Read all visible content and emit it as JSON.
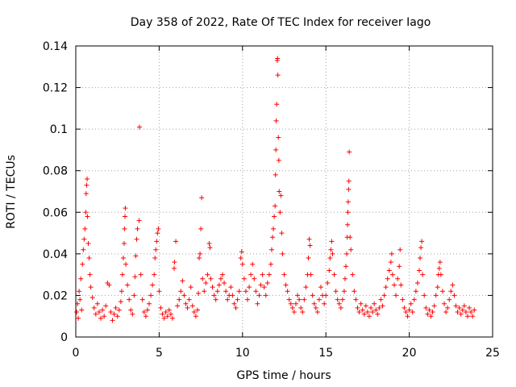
{
  "chart_data": {
    "type": "scatter",
    "title": "Day 358 of 2022, Rate Of TEC Index for receiver Iago",
    "xlabel": "GPS time / hours",
    "ylabel": "ROTI / TECUs",
    "xlim": [
      0,
      25
    ],
    "ylim": [
      0,
      0.14
    ],
    "xticks": [
      0,
      5,
      10,
      15,
      20,
      25
    ],
    "xtick_labels": [
      "0",
      "5",
      "10",
      "15",
      "20",
      "25"
    ],
    "yticks": [
      0,
      0.02,
      0.04,
      0.06,
      0.08,
      0.1,
      0.12,
      0.14
    ],
    "ytick_labels": [
      "0",
      "0.02",
      "0.04",
      "0.06",
      "0.08",
      "0.1",
      "0.12",
      "0.14"
    ],
    "grid": true,
    "marker": "+",
    "color": "#ff0000",
    "series": [
      {
        "points": [
          [
            0.05,
            0.012
          ],
          [
            0.1,
            0.016
          ],
          [
            0.15,
            0.009
          ],
          [
            0.2,
            0.022
          ],
          [
            0.25,
            0.018
          ],
          [
            0.3,
            0.028
          ],
          [
            0.35,
            0.013
          ],
          [
            0.4,
            0.035
          ],
          [
            0.45,
            0.042
          ],
          [
            0.5,
            0.047
          ],
          [
            0.55,
            0.052
          ],
          [
            0.6,
            0.06
          ],
          [
            0.62,
            0.069
          ],
          [
            0.65,
            0.073
          ],
          [
            0.68,
            0.076
          ],
          [
            0.7,
            0.058
          ],
          [
            0.75,
            0.045
          ],
          [
            0.8,
            0.038
          ],
          [
            0.85,
            0.03
          ],
          [
            0.9,
            0.024
          ],
          [
            1.0,
            0.019
          ],
          [
            1.1,
            0.014
          ],
          [
            1.2,
            0.011
          ],
          [
            1.3,
            0.016
          ],
          [
            1.4,
            0.012
          ],
          [
            1.5,
            0.009
          ],
          [
            1.6,
            0.013
          ],
          [
            1.7,
            0.01
          ],
          [
            1.8,
            0.015
          ],
          [
            1.9,
            0.026
          ],
          [
            2.0,
            0.025
          ],
          [
            2.1,
            0.012
          ],
          [
            2.2,
            0.008
          ],
          [
            2.3,
            0.011
          ],
          [
            2.4,
            0.014
          ],
          [
            2.5,
            0.01
          ],
          [
            2.6,
            0.013
          ],
          [
            2.7,
            0.017
          ],
          [
            2.75,
            0.022
          ],
          [
            2.8,
            0.03
          ],
          [
            2.85,
            0.038
          ],
          [
            2.9,
            0.045
          ],
          [
            2.92,
            0.052
          ],
          [
            2.95,
            0.058
          ],
          [
            2.97,
            0.062
          ],
          [
            3.0,
            0.035
          ],
          [
            3.1,
            0.025
          ],
          [
            3.2,
            0.018
          ],
          [
            3.3,
            0.013
          ],
          [
            3.4,
            0.011
          ],
          [
            3.5,
            0.02
          ],
          [
            3.55,
            0.029
          ],
          [
            3.6,
            0.039
          ],
          [
            3.65,
            0.047
          ],
          [
            3.7,
            0.052
          ],
          [
            3.8,
            0.056
          ],
          [
            3.82,
            0.101
          ],
          [
            3.9,
            0.03
          ],
          [
            4.0,
            0.018
          ],
          [
            4.1,
            0.012
          ],
          [
            4.2,
            0.01
          ],
          [
            4.3,
            0.013
          ],
          [
            4.4,
            0.016
          ],
          [
            4.5,
            0.02
          ],
          [
            4.6,
            0.025
          ],
          [
            4.7,
            0.03
          ],
          [
            4.75,
            0.038
          ],
          [
            4.8,
            0.042
          ],
          [
            4.85,
            0.046
          ],
          [
            4.9,
            0.05
          ],
          [
            4.95,
            0.052
          ],
          [
            5.0,
            0.022
          ],
          [
            5.1,
            0.014
          ],
          [
            5.2,
            0.011
          ],
          [
            5.3,
            0.009
          ],
          [
            5.4,
            0.012
          ],
          [
            5.5,
            0.01
          ],
          [
            5.6,
            0.013
          ],
          [
            5.7,
            0.011
          ],
          [
            5.8,
            0.009
          ],
          [
            5.9,
            0.033
          ],
          [
            5.92,
            0.036
          ],
          [
            6.0,
            0.046
          ],
          [
            6.1,
            0.015
          ],
          [
            6.2,
            0.018
          ],
          [
            6.3,
            0.022
          ],
          [
            6.4,
            0.027
          ],
          [
            6.5,
            0.02
          ],
          [
            6.6,
            0.016
          ],
          [
            6.7,
            0.014
          ],
          [
            6.8,
            0.018
          ],
          [
            6.9,
            0.024
          ],
          [
            7.0,
            0.015
          ],
          [
            7.1,
            0.012
          ],
          [
            7.2,
            0.01
          ],
          [
            7.3,
            0.013
          ],
          [
            7.35,
            0.021
          ],
          [
            7.4,
            0.038
          ],
          [
            7.45,
            0.04
          ],
          [
            7.5,
            0.052
          ],
          [
            7.55,
            0.067
          ],
          [
            7.6,
            0.028
          ],
          [
            7.7,
            0.022
          ],
          [
            7.8,
            0.026
          ],
          [
            7.9,
            0.03
          ],
          [
            8.0,
            0.045
          ],
          [
            8.05,
            0.043
          ],
          [
            8.1,
            0.028
          ],
          [
            8.2,
            0.024
          ],
          [
            8.3,
            0.02
          ],
          [
            8.4,
            0.018
          ],
          [
            8.5,
            0.022
          ],
          [
            8.6,
            0.025
          ],
          [
            8.7,
            0.028
          ],
          [
            8.8,
            0.03
          ],
          [
            8.9,
            0.026
          ],
          [
            9.0,
            0.022
          ],
          [
            9.1,
            0.018
          ],
          [
            9.2,
            0.02
          ],
          [
            9.3,
            0.024
          ],
          [
            9.4,
            0.02
          ],
          [
            9.5,
            0.016
          ],
          [
            9.6,
            0.014
          ],
          [
            9.7,
            0.018
          ],
          [
            9.8,
            0.022
          ],
          [
            9.9,
            0.038
          ],
          [
            9.95,
            0.041
          ],
          [
            10.0,
            0.035
          ],
          [
            10.1,
            0.028
          ],
          [
            10.2,
            0.022
          ],
          [
            10.3,
            0.018
          ],
          [
            10.4,
            0.024
          ],
          [
            10.5,
            0.03
          ],
          [
            10.6,
            0.035
          ],
          [
            10.7,
            0.028
          ],
          [
            10.8,
            0.022
          ],
          [
            10.9,
            0.016
          ],
          [
            11.0,
            0.02
          ],
          [
            11.1,
            0.025
          ],
          [
            11.2,
            0.03
          ],
          [
            11.3,
            0.024
          ],
          [
            11.4,
            0.02
          ],
          [
            11.5,
            0.026
          ],
          [
            11.6,
            0.03
          ],
          [
            11.7,
            0.035
          ],
          [
            11.75,
            0.042
          ],
          [
            11.8,
            0.048
          ],
          [
            11.85,
            0.052
          ],
          [
            11.9,
            0.058
          ],
          [
            11.95,
            0.063
          ],
          [
            11.98,
            0.078
          ],
          [
            12.0,
            0.09
          ],
          [
            12.02,
            0.104
          ],
          [
            12.05,
            0.112
          ],
          [
            12.08,
            0.133
          ],
          [
            12.1,
            0.134
          ],
          [
            12.12,
            0.126
          ],
          [
            12.15,
            0.096
          ],
          [
            12.18,
            0.085
          ],
          [
            12.2,
            0.07
          ],
          [
            12.25,
            0.06
          ],
          [
            12.3,
            0.068
          ],
          [
            12.35,
            0.05
          ],
          [
            12.4,
            0.04
          ],
          [
            12.5,
            0.03
          ],
          [
            12.6,
            0.025
          ],
          [
            12.7,
            0.022
          ],
          [
            12.8,
            0.018
          ],
          [
            12.9,
            0.016
          ],
          [
            13.0,
            0.014
          ],
          [
            13.1,
            0.012
          ],
          [
            13.2,
            0.016
          ],
          [
            13.3,
            0.02
          ],
          [
            13.4,
            0.018
          ],
          [
            13.5,
            0.014
          ],
          [
            13.6,
            0.012
          ],
          [
            13.7,
            0.018
          ],
          [
            13.8,
            0.024
          ],
          [
            13.9,
            0.03
          ],
          [
            13.95,
            0.038
          ],
          [
            14.0,
            0.047
          ],
          [
            14.05,
            0.044
          ],
          [
            14.1,
            0.03
          ],
          [
            14.2,
            0.02
          ],
          [
            14.3,
            0.016
          ],
          [
            14.4,
            0.014
          ],
          [
            14.5,
            0.012
          ],
          [
            14.6,
            0.018
          ],
          [
            14.7,
            0.024
          ],
          [
            14.8,
            0.02
          ],
          [
            14.9,
            0.016
          ],
          [
            15.0,
            0.02
          ],
          [
            15.1,
            0.026
          ],
          [
            15.2,
            0.032
          ],
          [
            15.25,
            0.038
          ],
          [
            15.3,
            0.042
          ],
          [
            15.35,
            0.046
          ],
          [
            15.4,
            0.04
          ],
          [
            15.5,
            0.03
          ],
          [
            15.6,
            0.022
          ],
          [
            15.7,
            0.018
          ],
          [
            15.8,
            0.016
          ],
          [
            15.9,
            0.014
          ],
          [
            16.0,
            0.018
          ],
          [
            16.1,
            0.022
          ],
          [
            16.15,
            0.028
          ],
          [
            16.2,
            0.034
          ],
          [
            16.25,
            0.04
          ],
          [
            16.28,
            0.048
          ],
          [
            16.3,
            0.054
          ],
          [
            16.32,
            0.06
          ],
          [
            16.34,
            0.065
          ],
          [
            16.36,
            0.071
          ],
          [
            16.38,
            0.075
          ],
          [
            16.4,
            0.089
          ],
          [
            16.45,
            0.048
          ],
          [
            16.5,
            0.042
          ],
          [
            16.6,
            0.03
          ],
          [
            16.7,
            0.022
          ],
          [
            16.8,
            0.018
          ],
          [
            16.9,
            0.014
          ],
          [
            17.0,
            0.012
          ],
          [
            17.1,
            0.016
          ],
          [
            17.2,
            0.013
          ],
          [
            17.3,
            0.011
          ],
          [
            17.4,
            0.015
          ],
          [
            17.5,
            0.012
          ],
          [
            17.6,
            0.01
          ],
          [
            17.7,
            0.014
          ],
          [
            17.8,
            0.012
          ],
          [
            17.9,
            0.016
          ],
          [
            18.0,
            0.013
          ],
          [
            18.1,
            0.011
          ],
          [
            18.2,
            0.014
          ],
          [
            18.3,
            0.018
          ],
          [
            18.4,
            0.015
          ],
          [
            18.5,
            0.02
          ],
          [
            18.6,
            0.024
          ],
          [
            18.7,
            0.028
          ],
          [
            18.8,
            0.032
          ],
          [
            18.9,
            0.036
          ],
          [
            18.95,
            0.04
          ],
          [
            19.0,
            0.03
          ],
          [
            19.1,
            0.025
          ],
          [
            19.2,
            0.02
          ],
          [
            19.3,
            0.028
          ],
          [
            19.4,
            0.034
          ],
          [
            19.45,
            0.042
          ],
          [
            19.5,
            0.025
          ],
          [
            19.6,
            0.018
          ],
          [
            19.7,
            0.014
          ],
          [
            19.8,
            0.012
          ],
          [
            19.9,
            0.01
          ],
          [
            20.0,
            0.013
          ],
          [
            20.1,
            0.016
          ],
          [
            20.2,
            0.012
          ],
          [
            20.3,
            0.018
          ],
          [
            20.4,
            0.022
          ],
          [
            20.5,
            0.026
          ],
          [
            20.6,
            0.032
          ],
          [
            20.65,
            0.038
          ],
          [
            20.7,
            0.043
          ],
          [
            20.75,
            0.046
          ],
          [
            20.8,
            0.03
          ],
          [
            20.9,
            0.02
          ],
          [
            21.0,
            0.014
          ],
          [
            21.1,
            0.011
          ],
          [
            21.2,
            0.013
          ],
          [
            21.3,
            0.01
          ],
          [
            21.4,
            0.012
          ],
          [
            21.5,
            0.015
          ],
          [
            21.6,
            0.02
          ],
          [
            21.7,
            0.024
          ],
          [
            21.75,
            0.03
          ],
          [
            21.8,
            0.033
          ],
          [
            21.85,
            0.036
          ],
          [
            21.9,
            0.03
          ],
          [
            22.0,
            0.022
          ],
          [
            22.1,
            0.016
          ],
          [
            22.2,
            0.012
          ],
          [
            22.3,
            0.014
          ],
          [
            22.4,
            0.018
          ],
          [
            22.5,
            0.022
          ],
          [
            22.6,
            0.025
          ],
          [
            22.7,
            0.02
          ],
          [
            22.8,
            0.015
          ],
          [
            22.9,
            0.012
          ],
          [
            23.0,
            0.014
          ],
          [
            23.1,
            0.011
          ],
          [
            23.2,
            0.013
          ],
          [
            23.3,
            0.015
          ],
          [
            23.4,
            0.012
          ],
          [
            23.5,
            0.01
          ],
          [
            23.6,
            0.014
          ],
          [
            23.7,
            0.012
          ],
          [
            23.8,
            0.01
          ],
          [
            23.9,
            0.013
          ]
        ]
      }
    ]
  }
}
